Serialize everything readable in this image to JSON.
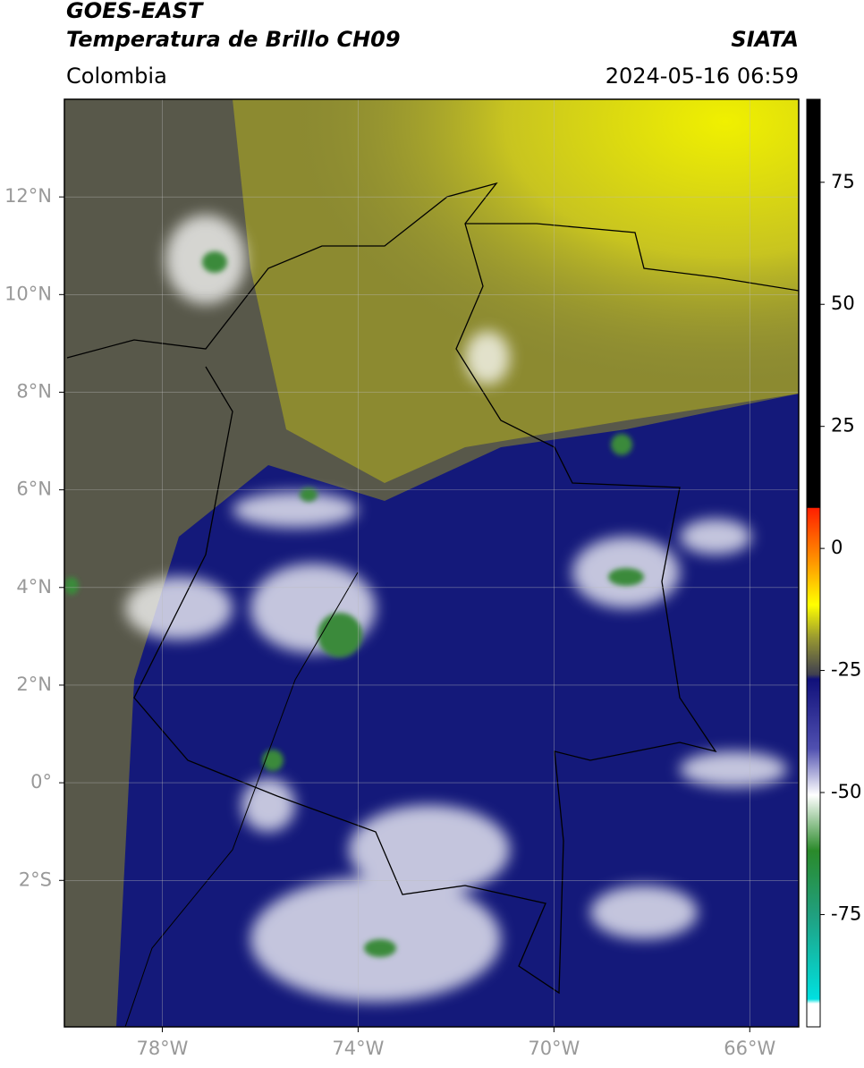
{
  "header": {
    "title": "GOES-EAST",
    "subtitle": "Temperatura de Brillo CH09",
    "source": "SIATA",
    "region": "Colombia",
    "datetime": "2024-05-16 06:59"
  },
  "map": {
    "xlim": [
      -80,
      -65
    ],
    "ylim": [
      -5,
      14
    ],
    "xticks": [
      {
        "value": -78,
        "label": "78°W"
      },
      {
        "value": -74,
        "label": "74°W"
      },
      {
        "value": -70,
        "label": "70°W"
      },
      {
        "value": -66,
        "label": "66°W"
      }
    ],
    "yticks": [
      {
        "value": 12,
        "label": "12°N"
      },
      {
        "value": 10,
        "label": "10°N"
      },
      {
        "value": 8,
        "label": "8°N"
      },
      {
        "value": 6,
        "label": "6°N"
      },
      {
        "value": 4,
        "label": "4°N"
      },
      {
        "value": 2,
        "label": "2°N"
      },
      {
        "value": 0,
        "label": "0°"
      },
      {
        "value": -2,
        "label": "2°S"
      }
    ],
    "grid": true
  },
  "colorbar": {
    "lim": [
      -98,
      92
    ],
    "ticks": [
      75,
      50,
      25,
      0,
      -25,
      -50,
      -75
    ]
  }
}
